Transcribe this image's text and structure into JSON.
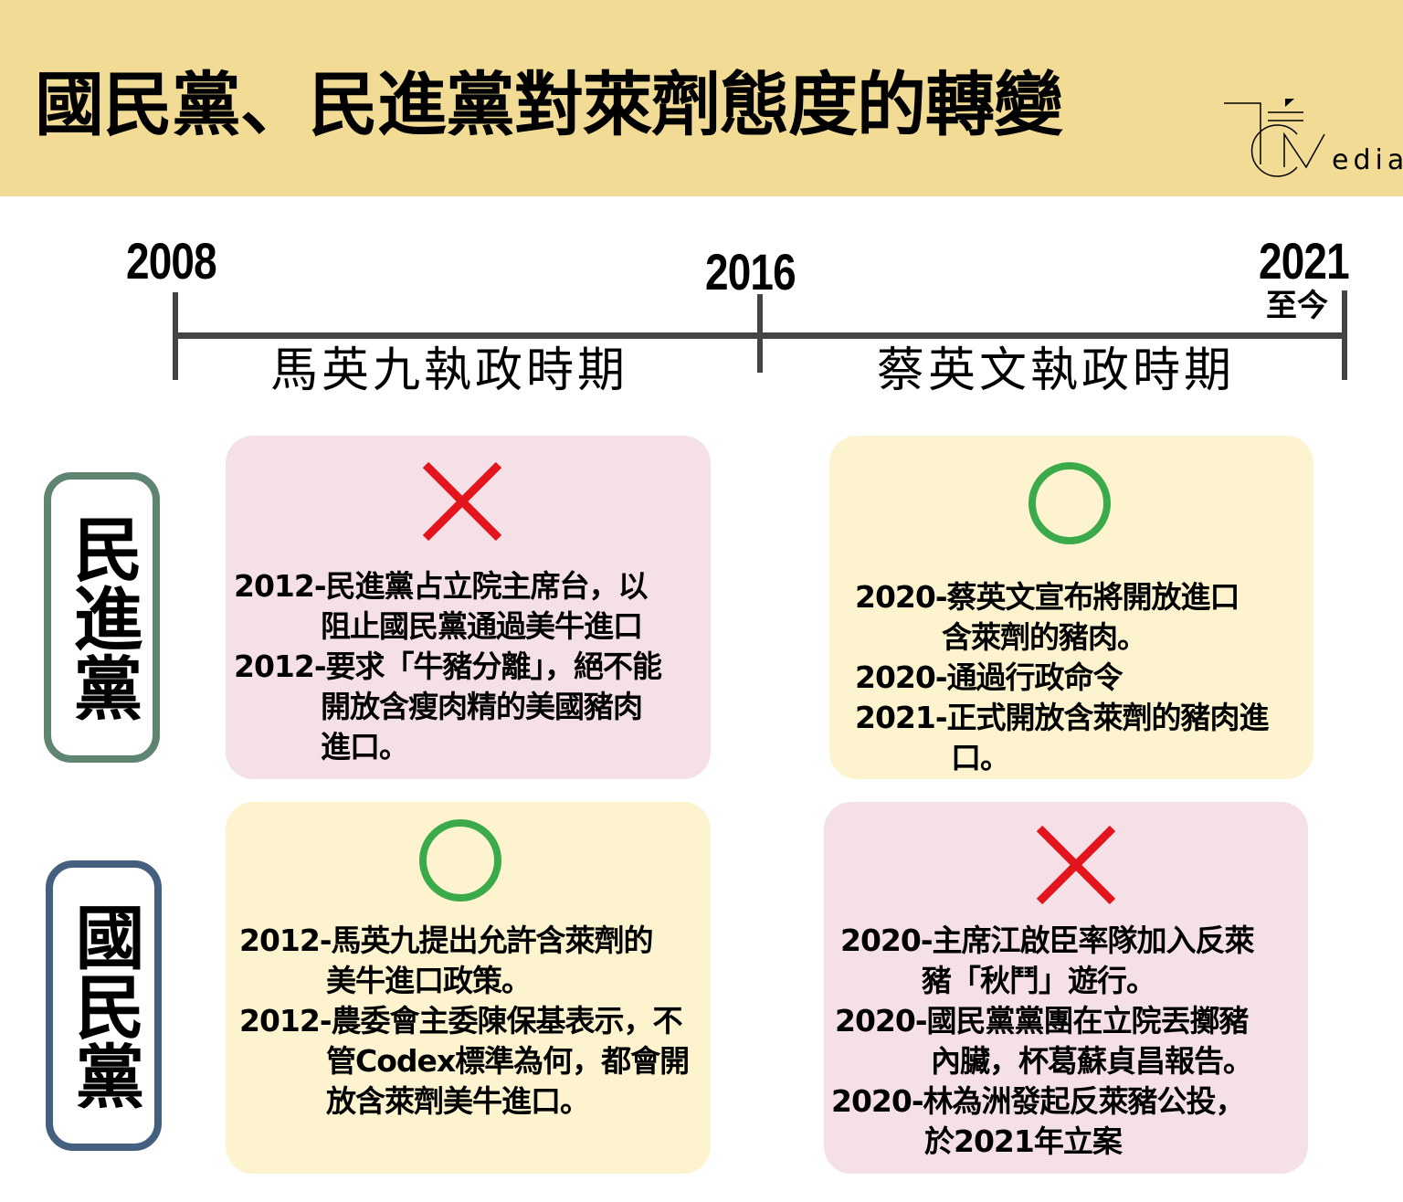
{
  "title": "國民黨、民進黨對萊劑態度的轉變",
  "logo_text": "CMedia",
  "timeline": {
    "years": [
      "2008",
      "2016",
      "2021"
    ],
    "end_note": "至今",
    "periods": [
      "馬英九執政時期",
      "蔡英文執政時期"
    ]
  },
  "colors": {
    "header": "#f2db95",
    "oppose": "#e3141b",
    "support": "#3aaa4a",
    "pink_card": "#f6e0e7",
    "yellow_card": "#fdf4cf",
    "dpp_border": "#5e8570",
    "kmt_border": "#45607f"
  },
  "parties": [
    {
      "name": "民進黨",
      "cards": [
        {
          "stance": "oppose",
          "icon": "cross-icon",
          "entries": [
            {
              "lines": [
                "2012-民進黨占立院主席台，以",
                "阻止國民黨通過美牛進口"
              ]
            },
            {
              "lines": [
                "2012-要求「牛豬分離」，絕不能",
                "開放含瘦肉精的美國豬肉",
                "進口。"
              ]
            }
          ]
        },
        {
          "stance": "support",
          "icon": "circle-icon",
          "entries": [
            {
              "lines": [
                "2020-蔡英文宣布將開放進口",
                "含萊劑的豬肉。"
              ]
            },
            {
              "lines": [
                "2020-通過行政命令"
              ]
            },
            {
              "lines": [
                "2021-正式開放含萊劑的豬肉進",
                "口。"
              ]
            }
          ]
        }
      ]
    },
    {
      "name": "國民黨",
      "cards": [
        {
          "stance": "support",
          "icon": "circle-icon",
          "entries": [
            {
              "lines": [
                "2012-馬英九提出允許含萊劑的",
                "美牛進口政策。"
              ]
            },
            {
              "lines": [
                "2012-農委會主委陳保基表示，不",
                "管Codex標準為何，都會開",
                "放含萊劑美牛進口。"
              ]
            }
          ]
        },
        {
          "stance": "oppose",
          "icon": "cross-icon",
          "entries": [
            {
              "lines": [
                "2020-主席江啟臣率隊加入反萊",
                "豬「秋鬥」遊行。"
              ]
            },
            {
              "lines": [
                "2020-國民黨黨團在立院丟擲豬",
                "內臟，杯葛蘇貞昌報告。"
              ]
            },
            {
              "lines": [
                "2020-林為洲發起反萊豬公投，",
                "於2021年立案"
              ]
            }
          ]
        }
      ]
    }
  ]
}
